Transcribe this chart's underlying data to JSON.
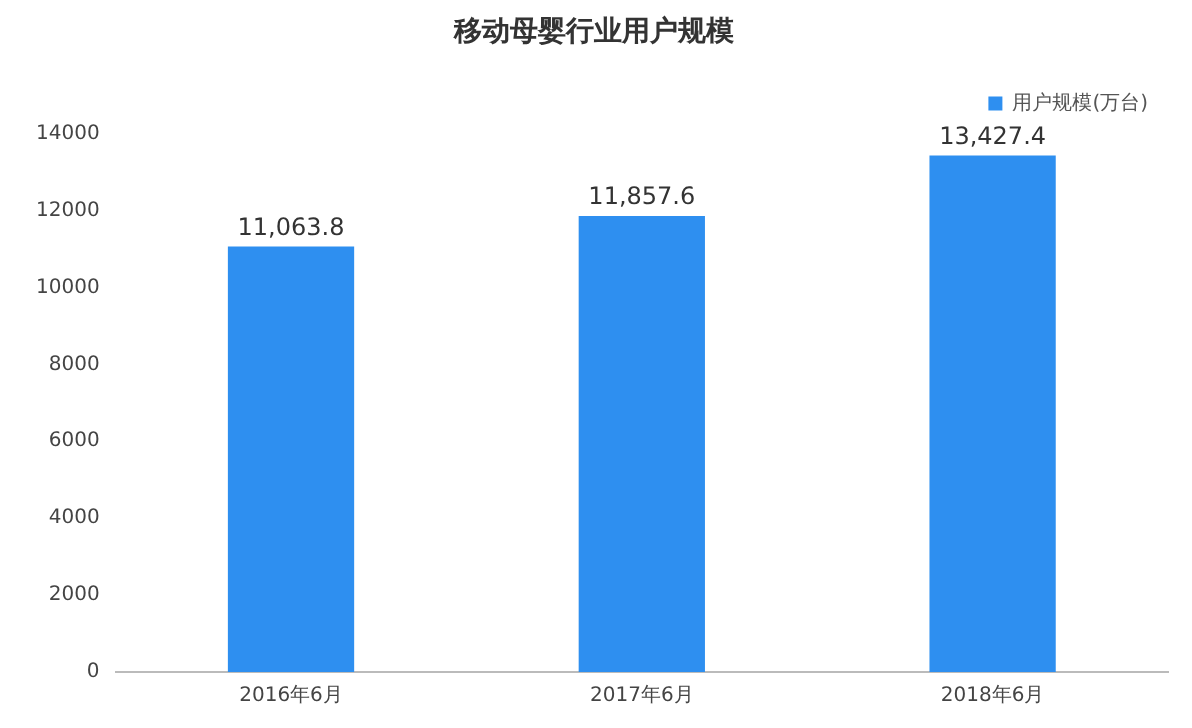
{
  "chart_data": {
    "type": "bar",
    "title": "移动母婴行业用户规模",
    "categories": [
      "2016年6月",
      "2017年6月",
      "2018年6月"
    ],
    "series": [
      {
        "name": "用户规模(万台)",
        "color": "#2e8ff0",
        "values": [
          11063.8,
          11857.6,
          13427.4
        ],
        "value_labels": [
          "11,063.8",
          "11,857.6",
          "13,427.4"
        ]
      }
    ],
    "ylim": [
      0,
      14000
    ],
    "yticks": [
      0,
      2000,
      4000,
      6000,
      8000,
      10000,
      12000,
      14000
    ],
    "grid": false,
    "legend": "top right"
  }
}
